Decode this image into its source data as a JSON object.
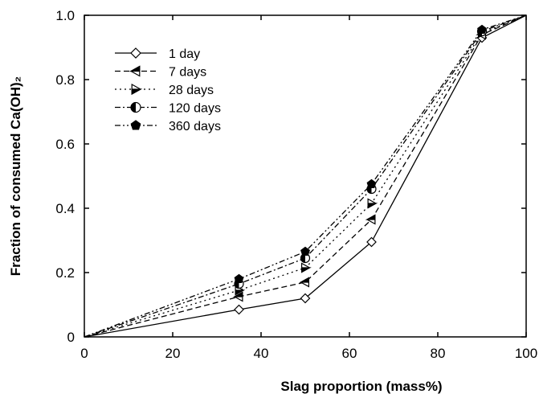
{
  "chart_data": {
    "type": "line",
    "xlabel": "Slag proportion (mass%)",
    "ylabel": "Fraction of consumed Ca(OH)₂",
    "xlim": [
      0,
      100
    ],
    "ylim": [
      0,
      1.0
    ],
    "x_ticks": [
      0,
      20,
      40,
      60,
      80,
      100
    ],
    "y_ticks": [
      0,
      0.2,
      0.4,
      0.6,
      0.8,
      1.0
    ],
    "x_tick_labels": [
      "0",
      "20",
      "40",
      "60",
      "80",
      "100"
    ],
    "y_tick_labels": [
      "0",
      "0.2",
      "0.4",
      "0.6",
      "0.8",
      "1.0"
    ],
    "grid": false,
    "legend_position": "top-left",
    "x": [
      0,
      35,
      50,
      65,
      90,
      100
    ],
    "series": [
      {
        "name": "1 day",
        "values": [
          0,
          0.085,
          0.12,
          0.295,
          0.93,
          1.0
        ],
        "marker": "diamond-open",
        "dash": "solid"
      },
      {
        "name": "7 days",
        "values": [
          0,
          0.125,
          0.17,
          0.365,
          0.94,
          1.0
        ],
        "marker": "triangle-left-half",
        "dash": "dashed"
      },
      {
        "name": "28 days",
        "values": [
          0,
          0.145,
          0.215,
          0.415,
          0.945,
          1.0
        ],
        "marker": "triangle-right-half",
        "dash": "dotted"
      },
      {
        "name": "120 days",
        "values": [
          0,
          0.165,
          0.245,
          0.46,
          0.95,
          1.0
        ],
        "marker": "circle-half",
        "dash": "dashdot"
      },
      {
        "name": "360 days",
        "values": [
          0,
          0.18,
          0.265,
          0.475,
          0.955,
          1.0
        ],
        "marker": "pentagon-filled",
        "dash": "dashdotdot"
      }
    ],
    "colors": {
      "line": "#000000",
      "background": "#ffffff"
    }
  }
}
